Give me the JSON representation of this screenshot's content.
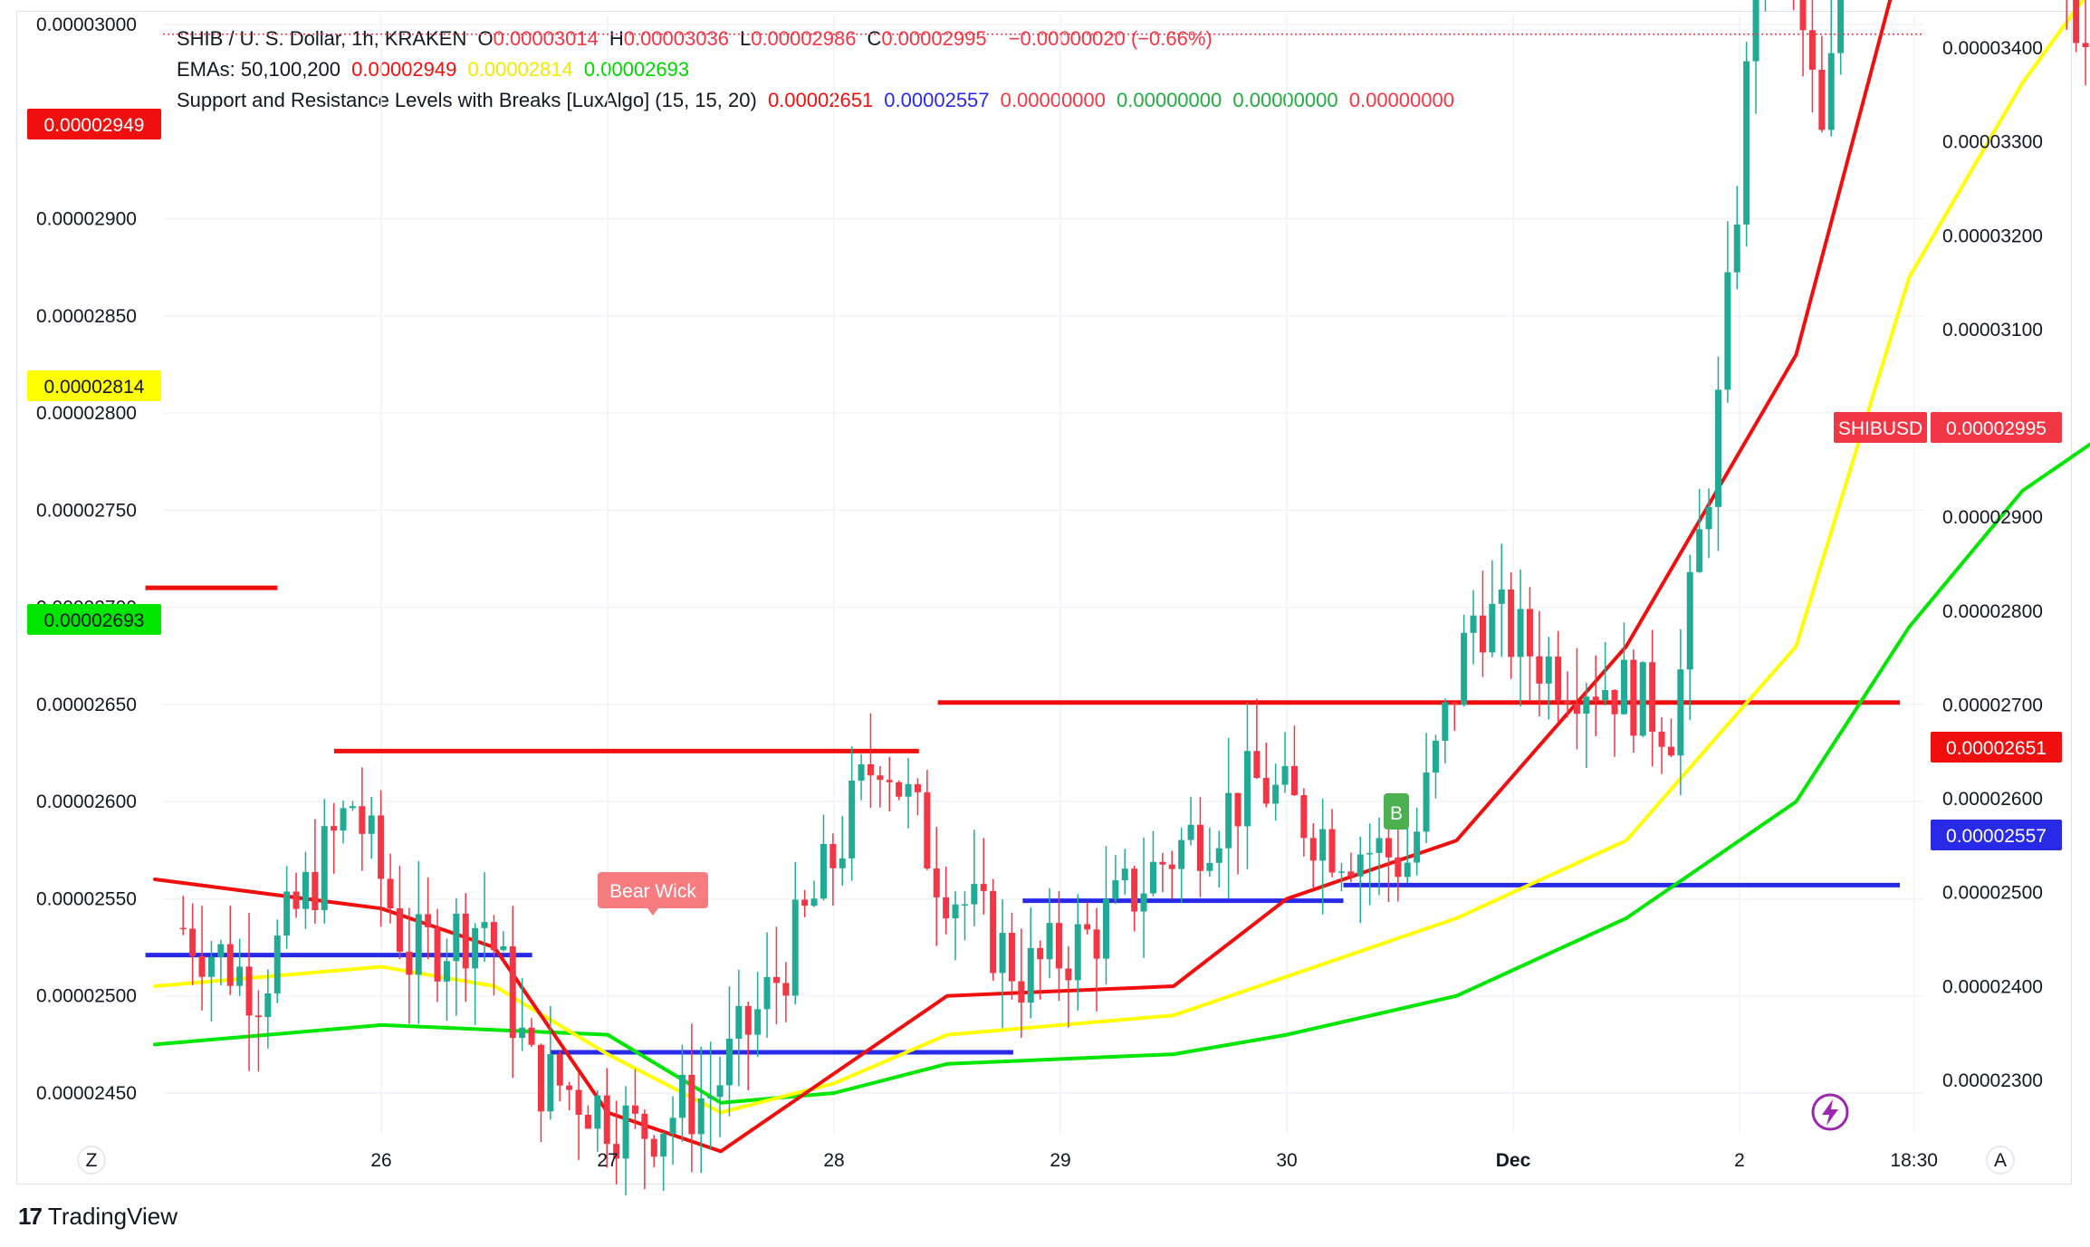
{
  "legend": {
    "symbol_line": "SHIB / U. S. Dollar, 1h, KRAKEN",
    "ohlc": [
      {
        "label": "O",
        "value": "0.00003014"
      },
      {
        "label": "H",
        "value": "0.00003036"
      },
      {
        "label": "L",
        "value": "0.00002986"
      },
      {
        "label": "C",
        "value": "0.00002995"
      }
    ],
    "change": "−0.00000020 (−0.66%)",
    "ema_label": "EMAs: 50,100,200",
    "ema_values": [
      "0.00002949",
      "0.00002814",
      "0.00002693"
    ],
    "sr_label": "Support and Resistance Levels with Breaks [LuxAlgo] (15, 15, 20)",
    "sr_values": [
      "0.00002651",
      "0.00002557",
      "0.00000000",
      "0.00000000",
      "0.00000000",
      "0.00000000"
    ]
  },
  "colors": {
    "bull": "#22ab94",
    "bear": "#f23645",
    "ema50": "#f00f0f",
    "ema100": "#ffff00",
    "ema200": "#00e600",
    "resistance": "#f00f0f",
    "support": "#2929e8",
    "bear_wick": "#f77c80",
    "break_b": "#4caf50"
  },
  "annotations": {
    "bear_wick": "Bear Wick",
    "break": "B"
  },
  "left_badges": [
    "0.00002949",
    "0.00002814",
    "0.00002693"
  ],
  "right_badges": {
    "symbol": "SHIBUSD",
    "price": "0.00002995",
    "resistance": "0.00002651",
    "support": "0.00002557"
  },
  "axis_corner": {
    "left": "Z",
    "right": "A"
  },
  "brand": "TradingView",
  "chart_data": {
    "type": "candlestick",
    "title": "SHIB / U. S. Dollar, 1h, KRAKEN",
    "x_ticks": [
      "26",
      "27",
      "28",
      "29",
      "30",
      "Dec",
      "2",
      "18:30"
    ],
    "left_axis": {
      "ticks": [
        "0.00003000",
        "0.00002900",
        "0.00002850",
        "0.00002800",
        "0.00002750",
        "0.00002700",
        "0.00002650",
        "0.00002600",
        "0.00002550",
        "0.00002500",
        "0.00002450"
      ],
      "range": [
        2.4405e-05,
        3.0025e-05
      ]
    },
    "right_axis": {
      "ticks": [
        "0.00003400",
        "0.00003300",
        "0.00003200",
        "0.00003100",
        "0.00003000",
        "0.00002900",
        "0.00002800",
        "0.00002700",
        "0.00002600",
        "0.00002500",
        "0.00002400",
        "0.00002300"
      ],
      "range": [
        2.2717e-05,
        3.4426e-05
      ]
    },
    "candle_close_path": [
      [
        "Nov 25 03:00",
        2.535e-05
      ],
      [
        "Nov 25 11:00",
        2.505e-05
      ],
      [
        "Nov 25 21:00",
        2.6e-05
      ],
      [
        "Nov 26 03:00",
        2.52e-05
      ],
      [
        "Nov 26 11:00",
        2.54e-05
      ],
      [
        "Nov 26 16:00",
        2.46e-05
      ],
      [
        "Nov 26 21:00",
        2.45e-05
      ],
      [
        "Nov 27 03:00",
        2.43e-05
      ],
      [
        "Nov 27 11:00",
        2.45e-05
      ],
      [
        "Nov 27 17:00",
        2.5e-05
      ],
      [
        "Nov 27 23:00",
        2.56e-05
      ],
      [
        "Nov 28 05:00",
        2.63e-05
      ],
      [
        "Nov 28 11:00",
        2.565e-05
      ],
      [
        "Nov 28 20:00",
        2.51e-05
      ],
      [
        "Nov 29 03:00",
        2.53e-05
      ],
      [
        "Nov 29 11:00",
        2.57e-05
      ],
      [
        "Nov 29 21:00",
        2.61e-05
      ],
      [
        "Nov 30 05:00",
        2.58e-05
      ],
      [
        "Nov 30 13:00",
        2.57e-05
      ],
      [
        "Nov 30 20:00",
        2.7e-05
      ],
      [
        "Dec 1 04:00",
        2.67e-05
      ],
      [
        "Dec 1 11:00",
        2.66e-05
      ],
      [
        "Dec 1 17:00",
        2.64e-05
      ],
      [
        "Dec 1 22:00",
        2.81e-05
      ],
      [
        "Dec 2 03:00",
        3.1e-05
      ],
      [
        "Dec 2 09:00",
        2.93e-05
      ],
      [
        "Dec 2 14:00",
        3.23e-05
      ],
      [
        "Dec 2 19:00",
        3.18e-05
      ],
      [
        "Dec 3 01:00",
        3.06e-05
      ],
      [
        "Dec 3 06:00",
        3.14e-05
      ],
      [
        "Dec 3 11:00",
        3.01e-05
      ],
      [
        "Dec 3 15:00",
        2.995e-05
      ]
    ],
    "ema50": [
      [
        "Nov 25 00:00",
        2.56e-05
      ],
      [
        "Nov 26 00:00",
        2.545e-05
      ],
      [
        "Nov 26 12:00",
        2.525e-05
      ],
      [
        "Nov 27 00:00",
        2.44e-05
      ],
      [
        "Nov 27 12:00",
        2.42e-05
      ],
      [
        "Nov 28 00:00",
        2.46e-05
      ],
      [
        "Nov 28 12:00",
        2.5e-05
      ],
      [
        "Nov 29 12:00",
        2.505e-05
      ],
      [
        "Nov 30 00:00",
        2.55e-05
      ],
      [
        "Nov 30 18:00",
        2.58e-05
      ],
      [
        "Dec 1 12:00",
        2.68e-05
      ],
      [
        "Dec 2 06:00",
        2.83e-05
      ],
      [
        "Dec 2 18:00",
        3.05e-05
      ],
      [
        "Dec 3 06:00",
        3.26e-05
      ],
      [
        "Dec 3 15:00",
        3.32e-05
      ]
    ],
    "ema100": [
      [
        "Nov 25 00:00",
        2.505e-05
      ],
      [
        "Nov 26 00:00",
        2.515e-05
      ],
      [
        "Nov 26 12:00",
        2.505e-05
      ],
      [
        "Nov 27 00:00",
        2.47e-05
      ],
      [
        "Nov 27 12:00",
        2.44e-05
      ],
      [
        "Nov 28 00:00",
        2.455e-05
      ],
      [
        "Nov 28 12:00",
        2.48e-05
      ],
      [
        "Nov 29 12:00",
        2.49e-05
      ],
      [
        "Nov 30 00:00",
        2.51e-05
      ],
      [
        "Nov 30 18:00",
        2.54e-05
      ],
      [
        "Dec 1 12:00",
        2.58e-05
      ],
      [
        "Dec 2 06:00",
        2.68e-05
      ],
      [
        "Dec 2 18:00",
        2.87e-05
      ],
      [
        "Dec 3 06:00",
        2.97e-05
      ],
      [
        "Dec 3 15:00",
        3.03e-05
      ]
    ],
    "ema200": [
      [
        "Nov 25 00:00",
        2.475e-05
      ],
      [
        "Nov 26 00:00",
        2.485e-05
      ],
      [
        "Nov 27 00:00",
        2.48e-05
      ],
      [
        "Nov 27 12:00",
        2.445e-05
      ],
      [
        "Nov 28 00:00",
        2.45e-05
      ],
      [
        "Nov 28 12:00",
        2.465e-05
      ],
      [
        "Nov 29 12:00",
        2.47e-05
      ],
      [
        "Nov 30 00:00",
        2.48e-05
      ],
      [
        "Nov 30 18:00",
        2.5e-05
      ],
      [
        "Dec 1 12:00",
        2.54e-05
      ],
      [
        "Dec 2 06:00",
        2.6e-05
      ],
      [
        "Dec 2 18:00",
        2.69e-05
      ],
      [
        "Dec 3 06:00",
        2.76e-05
      ],
      [
        "Dec 3 15:00",
        2.79e-05
      ]
    ],
    "resistance_segments": [
      {
        "from": "Nov 24 23:00",
        "to": "Nov 25 13:00",
        "price": 2.71e-05
      },
      {
        "from": "Nov 25 19:00",
        "to": "Nov 28 09:00",
        "price": 2.626e-05
      },
      {
        "from": "Nov 28 11:00",
        "to": "Dec 2 17:00",
        "price": 2.651e-05
      }
    ],
    "support_segments": [
      {
        "from": "Nov 24 23:00",
        "to": "Nov 26 16:00",
        "price": 2.521e-05
      },
      {
        "from": "Nov 26 18:00",
        "to": "Nov 28 19:00",
        "price": 2.471e-05
      },
      {
        "from": "Nov 28 20:00",
        "to": "Nov 30 06:00",
        "price": 2.549e-05
      },
      {
        "from": "Nov 30 06:00",
        "to": "Dec 2 17:00",
        "price": 2.557e-05
      }
    ],
    "last_price": 2.995e-05
  }
}
